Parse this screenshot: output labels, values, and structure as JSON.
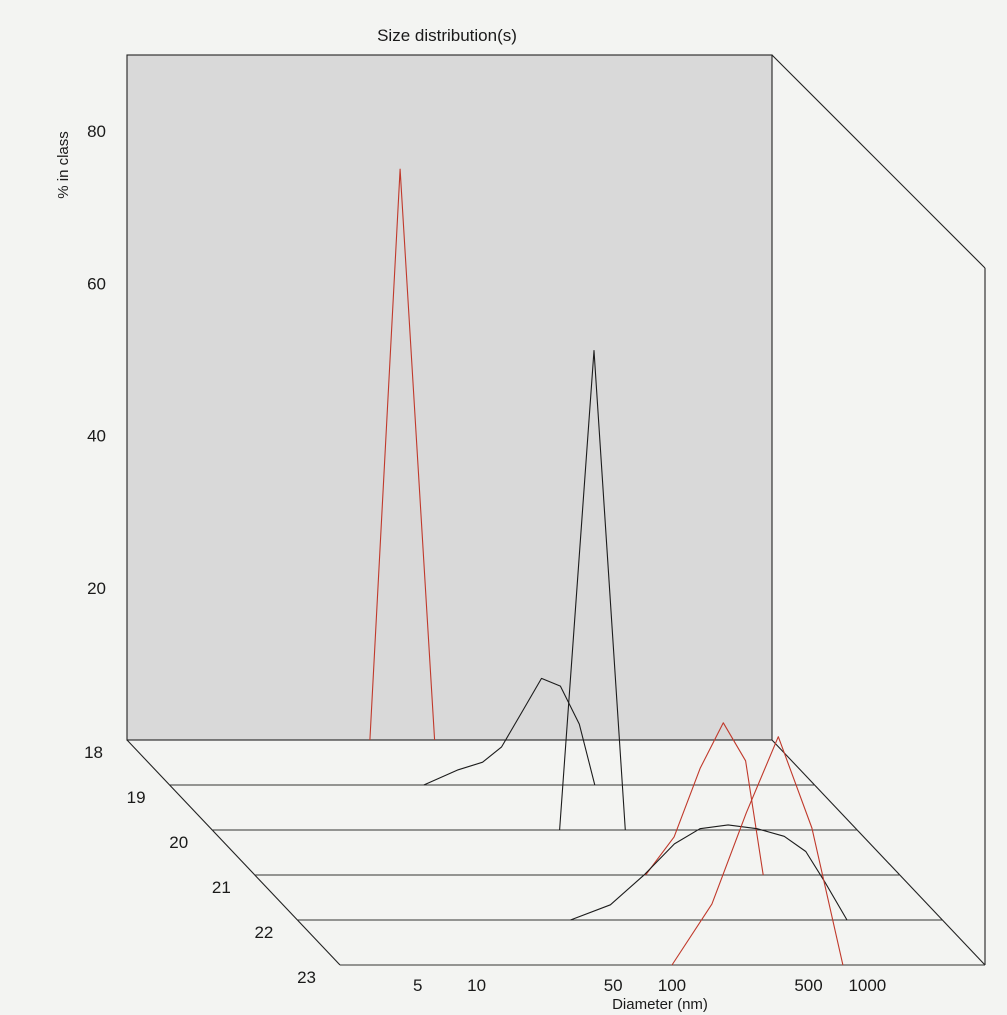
{
  "chart_data": {
    "type": "line",
    "title": "Size distribution(s)",
    "xlabel": "Diameter (nm)",
    "ylabel": "% in class",
    "z_ticks": [
      "18",
      "19",
      "20",
      "21",
      "22",
      "23"
    ],
    "x_ticks": [
      {
        "value": 5,
        "label": "5"
      },
      {
        "value": 10,
        "label": "10"
      },
      {
        "value": 50,
        "label": "50"
      },
      {
        "value": 100,
        "label": "100"
      },
      {
        "value": 500,
        "label": "500"
      },
      {
        "value": 1000,
        "label": "1000"
      }
    ],
    "y_ticks": [
      20,
      40,
      60,
      80
    ],
    "x_scale": "log",
    "xlim": [
      2,
      4000
    ],
    "ylim": [
      0,
      90
    ],
    "colors": {
      "black_trace": "#1c1c1c",
      "red_trace": "#c0392b",
      "panel": "#d9d9d9"
    },
    "series": [
      {
        "depth": 18,
        "color": "#c0392b",
        "x": [
          35,
          50,
          75
        ],
        "y": [
          0,
          75,
          0
        ]
      },
      {
        "depth": 19,
        "color": "#1c1c1c",
        "x": [
          40,
          60,
          80,
          100,
          130,
          160,
          200,
          250,
          300
        ],
        "y": [
          0,
          2,
          3,
          5,
          10,
          14,
          13,
          8,
          0
        ]
      },
      {
        "depth": 20,
        "color": "#1c1c1c",
        "x": [
          120,
          180,
          260
        ],
        "y": [
          0,
          63,
          0
        ]
      },
      {
        "depth": 21,
        "color": "#c0392b",
        "x": [
          200,
          280,
          380,
          500,
          650,
          800
        ],
        "y": [
          0,
          5,
          14,
          20,
          15,
          0
        ]
      },
      {
        "depth": 22,
        "color": "#1c1c1c",
        "x": [
          50,
          80,
          120,
          170,
          230,
          320,
          450,
          620,
          800,
          1000,
          1300
        ],
        "y": [
          0,
          2,
          6,
          10,
          12,
          12.5,
          12,
          11,
          9,
          5,
          0
        ]
      },
      {
        "depth": 23,
        "color": "#c0392b",
        "x": [
          100,
          160,
          240,
          350,
          520,
          750
        ],
        "y": [
          0,
          8,
          20,
          30,
          18,
          0
        ]
      }
    ]
  }
}
